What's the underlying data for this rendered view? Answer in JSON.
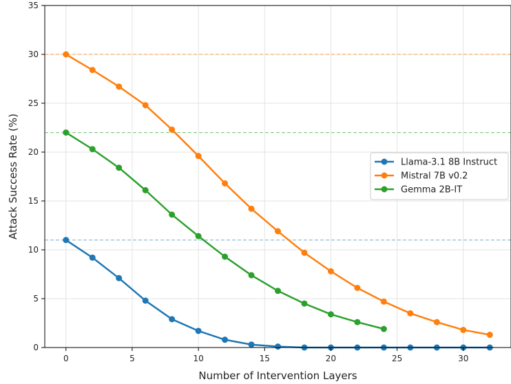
{
  "chart_data": {
    "type": "line",
    "title": "",
    "xlabel": "Number of Intervention Layers",
    "ylabel": "Attack Success Rate (%)",
    "xlim": [
      -1.6,
      33.6
    ],
    "ylim": [
      0,
      35
    ],
    "xticks": [
      0,
      5,
      10,
      15,
      20,
      25,
      30
    ],
    "yticks": [
      0,
      5,
      10,
      15,
      20,
      25,
      30,
      35
    ],
    "grid": true,
    "legend_position": "center-right",
    "series": [
      {
        "name": "Llama-3.1 8B Instruct",
        "color": "#1f77b4",
        "x": [
          0,
          2,
          4,
          6,
          8,
          10,
          12,
          14,
          16,
          18,
          20,
          22,
          24,
          26,
          28,
          30,
          32
        ],
        "y": [
          11.0,
          9.2,
          7.1,
          4.8,
          2.9,
          1.7,
          0.8,
          0.3,
          0.1,
          0.0,
          0.0,
          0.0,
          0.0,
          0.0,
          0.0,
          0.0,
          0.0
        ],
        "baseline": 11.0
      },
      {
        "name": "Mistral 7B v0.2",
        "color": "#ff7f0e",
        "x": [
          0,
          2,
          4,
          6,
          8,
          10,
          12,
          14,
          16,
          18,
          20,
          22,
          24,
          26,
          28,
          30,
          32
        ],
        "y": [
          30.0,
          28.4,
          26.7,
          24.8,
          22.3,
          19.6,
          16.8,
          14.2,
          11.9,
          9.7,
          7.8,
          6.1,
          4.7,
          3.5,
          2.6,
          1.8,
          1.3
        ],
        "baseline": 30.0
      },
      {
        "name": "Gemma 2B-IT",
        "color": "#2ca02c",
        "x": [
          0,
          2,
          4,
          6,
          8,
          10,
          12,
          14,
          16,
          18,
          20,
          22,
          24
        ],
        "y": [
          22.0,
          20.3,
          18.4,
          16.1,
          13.6,
          11.4,
          9.3,
          7.4,
          5.8,
          4.5,
          3.4,
          2.6,
          1.9
        ],
        "baseline": 22.0
      }
    ]
  }
}
